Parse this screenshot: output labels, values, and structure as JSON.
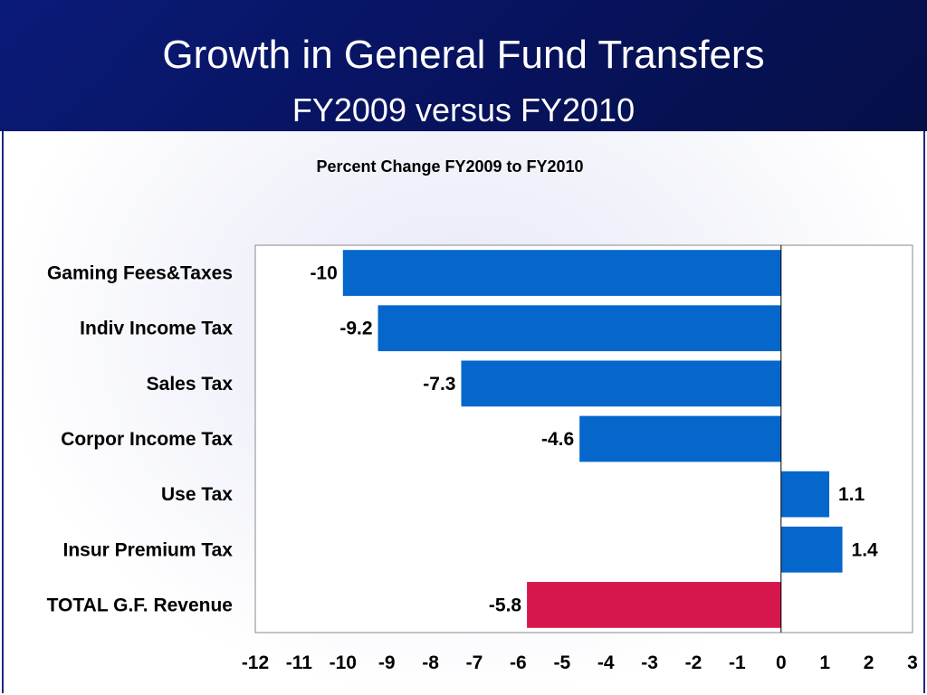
{
  "slide": {
    "title": "Growth in General Fund Transfers",
    "subtitle": "FY2009 versus FY2010"
  },
  "colors": {
    "title_band": "#0a1a78",
    "bar_default": "#0566cc",
    "bar_highlight": "#d6174c"
  },
  "chart_data": {
    "type": "bar",
    "orientation": "horizontal",
    "title": "Percent Change  FY2009  to FY2010",
    "categories": [
      "Gaming Fees&Taxes",
      "Indiv Income Tax",
      "Sales Tax",
      "Corpor Income Tax",
      "Use Tax",
      "Insur Premium Tax",
      "TOTAL G.F. Revenue"
    ],
    "values": [
      -10,
      -9.2,
      -7.3,
      -4.6,
      1.1,
      1.4,
      -5.8
    ],
    "value_labels": [
      "-10",
      "-9.2",
      "-7.3",
      "-4.6",
      "1.1",
      "1.4",
      "-5.8"
    ],
    "bar_colors": [
      "#0566cc",
      "#0566cc",
      "#0566cc",
      "#0566cc",
      "#0566cc",
      "#0566cc",
      "#d6174c"
    ],
    "xlim": [
      -12,
      3
    ],
    "xticks": [
      -12,
      -11,
      -10,
      -9,
      -8,
      -7,
      -6,
      -5,
      -4,
      -3,
      -2,
      -1,
      0,
      1,
      2,
      3
    ],
    "xlabel": "",
    "ylabel": "",
    "grid": false,
    "legend": "none"
  }
}
